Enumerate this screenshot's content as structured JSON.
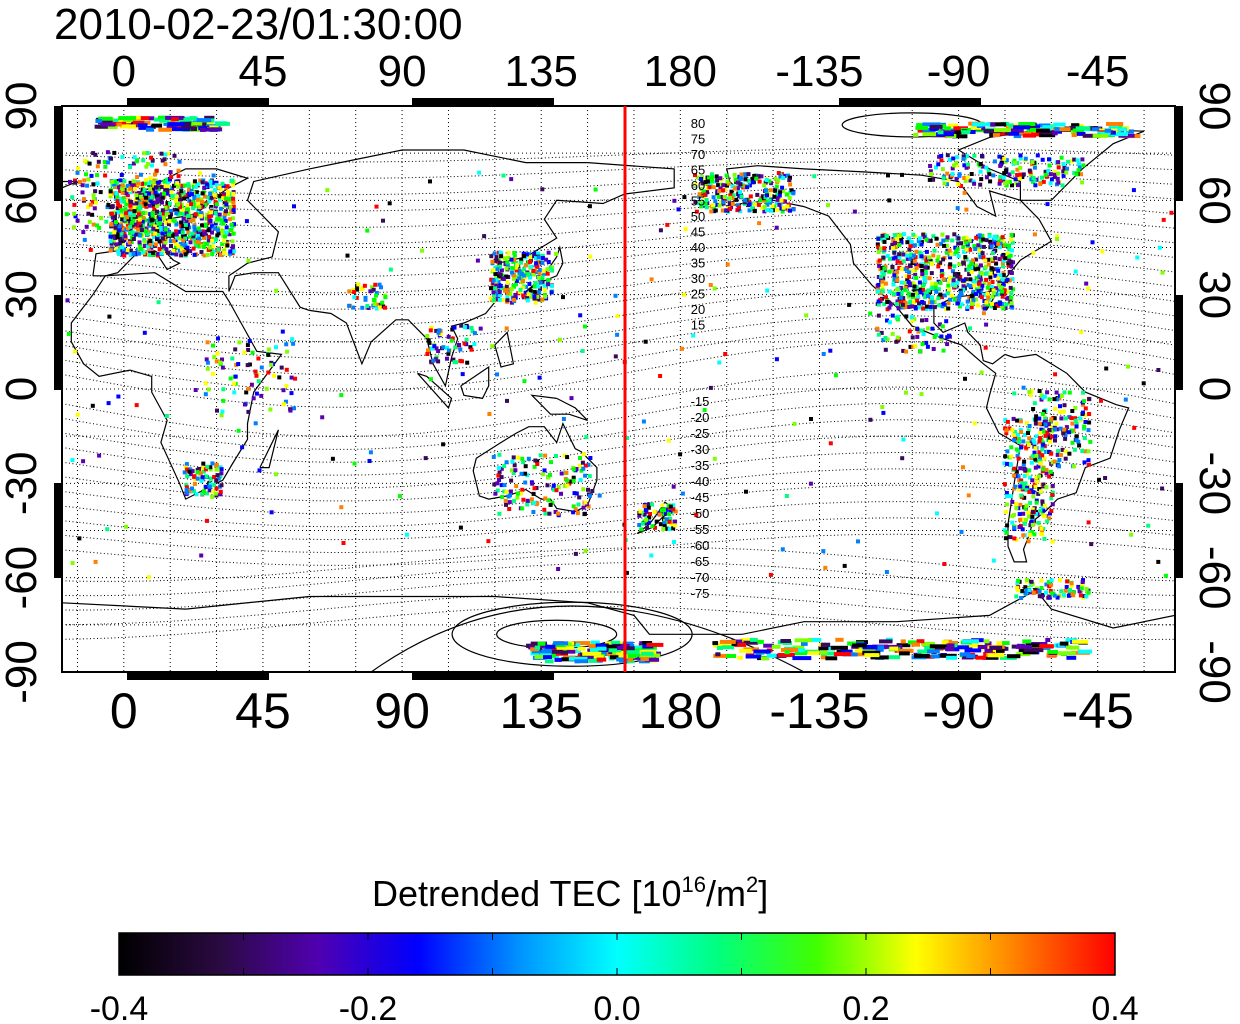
{
  "title": "2010-02-23/01:30:00",
  "map": {
    "top_lon_ticks": [
      "0",
      "45",
      "90",
      "135",
      "180",
      "-135",
      "-90",
      "-45"
    ],
    "bottom_lon_ticks": [
      "0",
      "45",
      "90",
      "135",
      "180",
      "-135",
      "-90",
      "-45"
    ],
    "left_lat_ticks": [
      "90",
      "60",
      "30",
      "0",
      "-30",
      "-60",
      "-90"
    ],
    "right_lat_ticks": [
      "90",
      "60",
      "30",
      "0",
      "-30",
      "-60",
      "-90"
    ],
    "contour_labels_north": [
      "80",
      "75",
      "70",
      "65",
      "60",
      "55",
      "50",
      "45",
      "40",
      "35",
      "30",
      "25",
      "20",
      "15"
    ],
    "contour_labels_south": [
      "-15",
      "-20",
      "-25",
      "-30",
      "-35",
      "-40",
      "-45",
      "-50",
      "-55",
      "-60",
      "-65",
      "-70",
      "-75"
    ],
    "terminator_line_color": "#ff0000",
    "lon_range": [
      -20,
      340
    ],
    "lat_range": [
      -90,
      90
    ]
  },
  "colorbar": {
    "title_main": "Detrended TEC  [10",
    "title_exp": "16",
    "title_unit": "/m",
    "title_exp2": "2",
    "title_end": "]",
    "tick_labels": [
      "-0.4",
      "-0.2",
      "0.0",
      "0.2",
      "0.4"
    ],
    "range": [
      -0.4,
      0.4
    ],
    "colors": [
      "#000000",
      "#3a0a5a",
      "#5a00b0",
      "#0000ff",
      "#0080ff",
      "#00ffff",
      "#00ff80",
      "#00ff00",
      "#80ff00",
      "#ffff00",
      "#ff8000",
      "#ff0000"
    ]
  }
}
